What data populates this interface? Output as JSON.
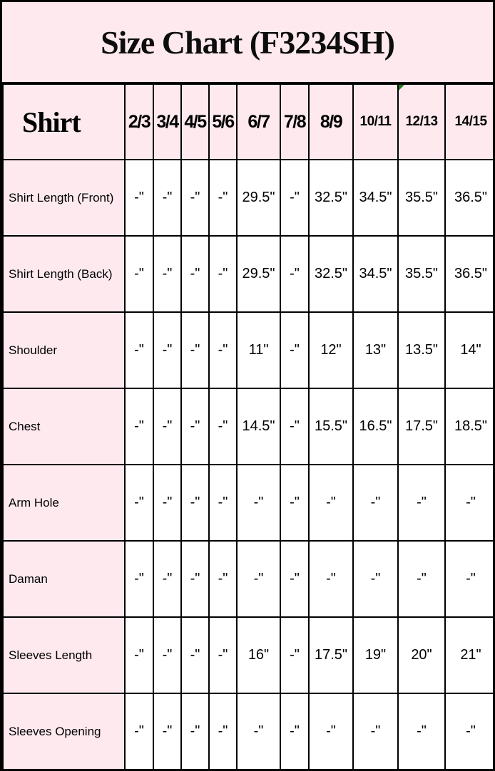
{
  "title": "Size Chart (F3234SH)",
  "chart_data": {
    "type": "table",
    "title": "Size Chart (F3234SH)",
    "corner_label": "Shirt",
    "columns": [
      "2/3",
      "3/4",
      "4/5",
      "5/6",
      "6/7",
      "7/8",
      "8/9",
      "10/11",
      "12/13",
      "14/15"
    ],
    "rows": [
      {
        "label": "Shirt Length (Front)",
        "values": [
          "-\"",
          "-\"",
          "-\"",
          "-\"",
          "29.5\"",
          "-\"",
          "32.5\"",
          "34.5\"",
          "35.5\"",
          "36.5\""
        ]
      },
      {
        "label": "Shirt Length (Back)",
        "values": [
          "-\"",
          "-\"",
          "-\"",
          "-\"",
          "29.5\"",
          "-\"",
          "32.5\"",
          "34.5\"",
          "35.5\"",
          "36.5\""
        ]
      },
      {
        "label": "Shoulder",
        "values": [
          "-\"",
          "-\"",
          "-\"",
          "-\"",
          "11\"",
          "-\"",
          "12\"",
          "13\"",
          "13.5\"",
          "14\""
        ]
      },
      {
        "label": "Chest",
        "values": [
          "-\"",
          "-\"",
          "-\"",
          "-\"",
          "14.5\"",
          "-\"",
          "15.5\"",
          "16.5\"",
          "17.5\"",
          "18.5\""
        ]
      },
      {
        "label": "Arm Hole",
        "values": [
          "-\"",
          "-\"",
          "-\"",
          "-\"",
          "-\"",
          "-\"",
          "-\"",
          "-\"",
          "-\"",
          "-\""
        ]
      },
      {
        "label": "Daman",
        "values": [
          "-\"",
          "-\"",
          "-\"",
          "-\"",
          "-\"",
          "-\"",
          "-\"",
          "-\"",
          "-\"",
          "-\""
        ]
      },
      {
        "label": "Sleeves Length",
        "values": [
          "-\"",
          "-\"",
          "-\"",
          "-\"",
          "16\"",
          "-\"",
          "17.5\"",
          "19\"",
          "20\"",
          "21\""
        ]
      },
      {
        "label": "Sleeves Opening",
        "values": [
          "-\"",
          "-\"",
          "-\"",
          "-\"",
          "-\"",
          "-\"",
          "-\"",
          "-\"",
          "-\"",
          "-\""
        ]
      }
    ]
  },
  "annotations": {
    "comment_marker": {
      "column": "12/13",
      "position": "top-left",
      "color": "#1f7f1f"
    }
  },
  "colors": {
    "background_pink": "#fde9ee",
    "cell_white": "#ffffff",
    "border_black": "#000000",
    "marker_green": "#1f7f1f"
  }
}
